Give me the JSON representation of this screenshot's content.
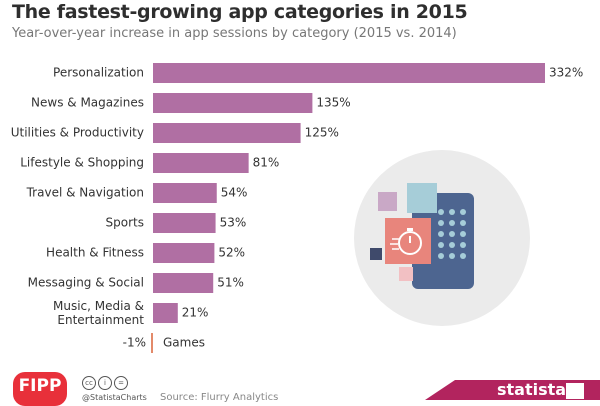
{
  "title": "The fastest-growing app categories in 2015",
  "subtitle": "Year-over-year increase in app sessions by category (2015 vs. 2014)",
  "colors": {
    "bar": "#b06fa3",
    "negative_bar": "#e38a6a"
  },
  "chart_data": {
    "type": "bar",
    "orientation": "horizontal",
    "title": "The fastest-growing app categories in 2015",
    "subtitle": "Year-over-year increase in app sessions by category (2015 vs. 2014)",
    "unit": "%",
    "categories": [
      "Personalization",
      "News & Magazines",
      "Utilities & Productivity",
      "Lifestyle & Shopping",
      "Travel & Navigation",
      "Sports",
      "Health & Fitness",
      "Messaging & Social",
      "Music, Media & Entertainment",
      "Games"
    ],
    "values": [
      332,
      135,
      125,
      81,
      54,
      53,
      52,
      51,
      21,
      -1
    ],
    "value_labels": [
      "332%",
      "135%",
      "125%",
      "81%",
      "54%",
      "53%",
      "52%",
      "51%",
      "21%",
      "-1%"
    ],
    "xlim": [
      -1,
      332
    ],
    "grid": false,
    "legend": "none"
  },
  "footer": {
    "publisher_logo": "FIPP",
    "cc_icons": [
      "cc-icon",
      "by-icon",
      "nd-icon"
    ],
    "handle": "@StatistaCharts",
    "source": "Source: Flurry Analytics",
    "brand": "statista"
  }
}
